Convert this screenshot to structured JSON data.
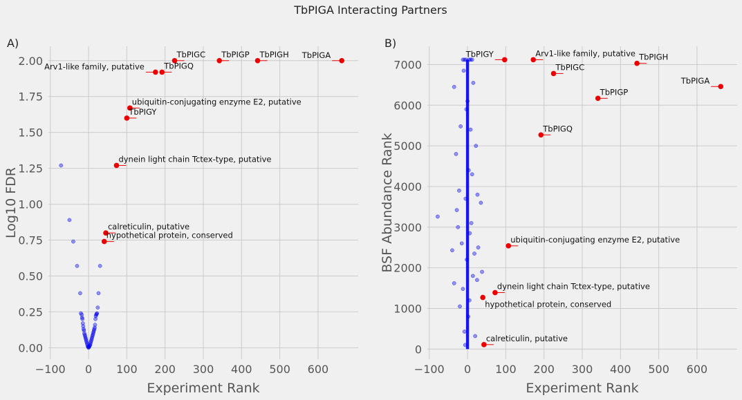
{
  "figure_title": "TbPIGA Interacting Partners",
  "colors": {
    "background": "#f0f0f0",
    "grid": "#cbcbcb",
    "background_points": "#0000ee",
    "hit_points": "#ee0000"
  },
  "chart_data": [
    {
      "type": "scatter",
      "panel_label": "A)",
      "xlabel": "Experiment Rank",
      "ylabel": "Log10 FDR",
      "xlim": [
        -105,
        705
      ],
      "ylim": [
        -0.08,
        2.1
      ],
      "xticks": [
        -100,
        0,
        100,
        200,
        300,
        400,
        500,
        600
      ],
      "yticks": [
        0.0,
        0.25,
        0.5,
        0.75,
        1.0,
        1.25,
        1.5,
        1.75,
        2.0
      ],
      "grid": true,
      "background_series": {
        "points": [
          [
            -72,
            1.27
          ],
          [
            -50,
            0.89
          ],
          [
            -40,
            0.74
          ],
          [
            -30,
            0.57
          ],
          [
            -22,
            0.38
          ],
          [
            -20,
            0.24
          ],
          [
            -18,
            0.23
          ],
          [
            -16,
            0.2
          ],
          [
            -14,
            0.15
          ],
          [
            -12,
            0.12
          ],
          [
            -10,
            0.09
          ],
          [
            -8,
            0.07
          ],
          [
            -6,
            0.05
          ],
          [
            -4,
            0.03
          ],
          [
            -2,
            0.01
          ],
          [
            0,
            0.0
          ],
          [
            2,
            0.01
          ],
          [
            4,
            0.02
          ],
          [
            6,
            0.04
          ],
          [
            8,
            0.06
          ],
          [
            10,
            0.08
          ],
          [
            12,
            0.1
          ],
          [
            14,
            0.12
          ],
          [
            16,
            0.14
          ],
          [
            18,
            0.2
          ],
          [
            20,
            0.23
          ],
          [
            22,
            0.24
          ],
          [
            24,
            0.28
          ],
          [
            26,
            0.38
          ],
          [
            30,
            0.57
          ],
          [
            -13,
            0.13
          ],
          [
            -11,
            0.1
          ],
          [
            -9,
            0.08
          ],
          [
            -7,
            0.06
          ],
          [
            -5,
            0.04
          ],
          [
            -3,
            0.02
          ],
          [
            -1,
            0.005
          ],
          [
            1,
            0.005
          ],
          [
            3,
            0.015
          ],
          [
            5,
            0.03
          ],
          [
            7,
            0.05
          ],
          [
            9,
            0.07
          ],
          [
            11,
            0.09
          ],
          [
            13,
            0.11
          ],
          [
            15,
            0.13
          ],
          [
            17,
            0.16
          ],
          [
            -15,
            0.17
          ],
          [
            -17,
            0.21
          ],
          [
            19,
            0.22
          ],
          [
            21,
            0.235
          ]
        ]
      },
      "highlighted_points": [
        {
          "label": "TbPIGC",
          "x": 225,
          "y": 2.0,
          "label_side": "right"
        },
        {
          "label": "TbPIGP",
          "x": 342,
          "y": 2.0,
          "label_side": "right"
        },
        {
          "label": "TbPIGH",
          "x": 442,
          "y": 2.0,
          "label_side": "right"
        },
        {
          "label": "TbPIGA",
          "x": 662,
          "y": 2.0,
          "label_side": "left"
        },
        {
          "label": "TbPIGQ",
          "x": 192,
          "y": 1.92,
          "label_side": "right"
        },
        {
          "label": "Arv1-like family, putative",
          "x": 175,
          "y": 1.92,
          "label_side": "left"
        },
        {
          "label": "ubiquitin-conjugating enzyme E2, putative",
          "x": 108,
          "y": 1.67,
          "label_side": "right"
        },
        {
          "label": "TbPIGY",
          "x": 100,
          "y": 1.6,
          "label_side": "right"
        },
        {
          "label": "dynein light chain Tctex-type, putative",
          "x": 73,
          "y": 1.27,
          "label_side": "right"
        },
        {
          "label": "calreticulin, putative",
          "x": 45,
          "y": 0.8,
          "label_side": "right"
        },
        {
          "label": "hypothetical protein, conserved",
          "x": 41,
          "y": 0.74,
          "label_side": "right"
        }
      ]
    },
    {
      "type": "scatter",
      "panel_label": "B)",
      "xlabel": "Experiment Rank",
      "ylabel": "BSF Abundance Rank",
      "xlim": [
        -105,
        705
      ],
      "ylim": [
        -250,
        7450
      ],
      "xticks": [
        -100,
        0,
        100,
        200,
        300,
        400,
        500,
        600
      ],
      "yticks": [
        0,
        1000,
        2000,
        3000,
        4000,
        5000,
        6000,
        7000
      ],
      "grid": true,
      "background_series": {
        "points": [
          [
            -78,
            3260
          ],
          [
            -40,
            2430
          ],
          [
            -35,
            6450
          ],
          [
            -35,
            1620
          ],
          [
            -30,
            4800
          ],
          [
            -28,
            3420
          ],
          [
            -25,
            3000
          ],
          [
            -20,
            1050
          ],
          [
            -18,
            5480
          ],
          [
            -15,
            2600
          ],
          [
            -12,
            1480
          ],
          [
            -10,
            6850
          ],
          [
            -8,
            430
          ],
          [
            -5,
            3700
          ],
          [
            -3,
            5900
          ],
          [
            -2,
            2200
          ],
          [
            0,
            6100
          ],
          [
            2,
            800
          ],
          [
            3,
            4400
          ],
          [
            5,
            1200
          ],
          [
            6,
            2850
          ],
          [
            8,
            5400
          ],
          [
            10,
            3100
          ],
          [
            12,
            4300
          ],
          [
            14,
            1800
          ],
          [
            15,
            6550
          ],
          [
            18,
            2350
          ],
          [
            22,
            5000
          ],
          [
            25,
            1700
          ],
          [
            26,
            3800
          ],
          [
            28,
            2500
          ],
          [
            35,
            3600
          ],
          [
            38,
            1900
          ],
          [
            20,
            320
          ],
          [
            -22,
            3900
          ],
          [
            -6,
            100
          ],
          [
            4,
            7120
          ],
          [
            -4,
            7120
          ],
          [
            8,
            7120
          ],
          [
            -8,
            7120
          ],
          [
            12,
            7120
          ],
          [
            -12,
            7120
          ]
        ]
      },
      "highlighted_points": [
        {
          "label": "TbPIGY",
          "x": 97,
          "y": 7120,
          "label_side": "left"
        },
        {
          "label": "Arv1-like family, putative",
          "x": 172,
          "y": 7120,
          "label_side": "right"
        },
        {
          "label": "TbPIGH",
          "x": 443,
          "y": 7030,
          "label_side": "right"
        },
        {
          "label": "TbPIGC",
          "x": 225,
          "y": 6780,
          "label_side": "right"
        },
        {
          "label": "TbPIGA",
          "x": 662,
          "y": 6460,
          "label_side": "left"
        },
        {
          "label": "TbPIGP",
          "x": 341,
          "y": 6170,
          "label_side": "right"
        },
        {
          "label": "TbPIGQ",
          "x": 192,
          "y": 5270,
          "label_side": "right"
        },
        {
          "label": "ubiquitin-conjugating enzyme E2, putative",
          "x": 107,
          "y": 2540,
          "label_side": "right"
        },
        {
          "label": "dynein light chain Tctex-type, putative",
          "x": 72,
          "y": 1390,
          "label_side": "right"
        },
        {
          "label": "hypothetical protein, conserved",
          "x": 40,
          "y": 1270,
          "label_side": "right-below"
        },
        {
          "label": "calreticulin, putative",
          "x": 43,
          "y": 110,
          "label_side": "right"
        }
      ]
    }
  ]
}
